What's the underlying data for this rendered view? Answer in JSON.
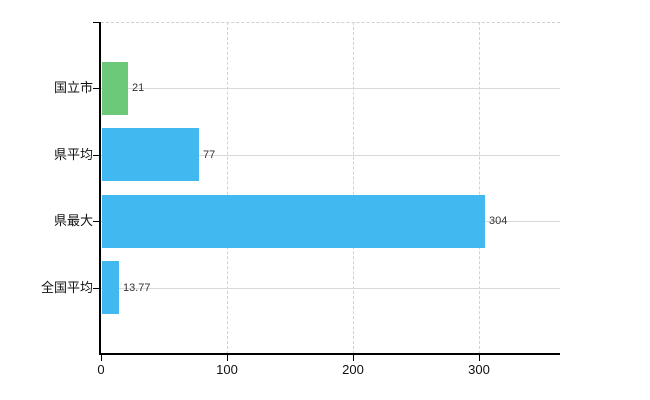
{
  "chart_data": {
    "type": "bar",
    "orientation": "horizontal",
    "title": "",
    "xlabel": "",
    "ylabel": "",
    "categories": [
      "国立市",
      "県平均",
      "県最大",
      "全国平均"
    ],
    "values": [
      21,
      77,
      304,
      13.77
    ],
    "value_labels": [
      "21",
      "77",
      "304",
      "13.77"
    ],
    "bar_colors": [
      "#6cc979",
      "#41b8f0",
      "#41b8f0",
      "#41b8f0"
    ],
    "x_ticks": [
      0,
      100,
      200,
      300
    ],
    "x_tick_labels": [
      "0",
      "100",
      "200",
      "300"
    ],
    "xlim": [
      0,
      364
    ],
    "grid": {
      "vertical_style": "dashed",
      "horizontal_style": "solid",
      "color": "#d9d9d6"
    },
    "colors": {
      "axis": "#000000",
      "category_text": "#111111",
      "value_text": "#333333",
      "background": "#ffffff"
    },
    "legend": null
  }
}
